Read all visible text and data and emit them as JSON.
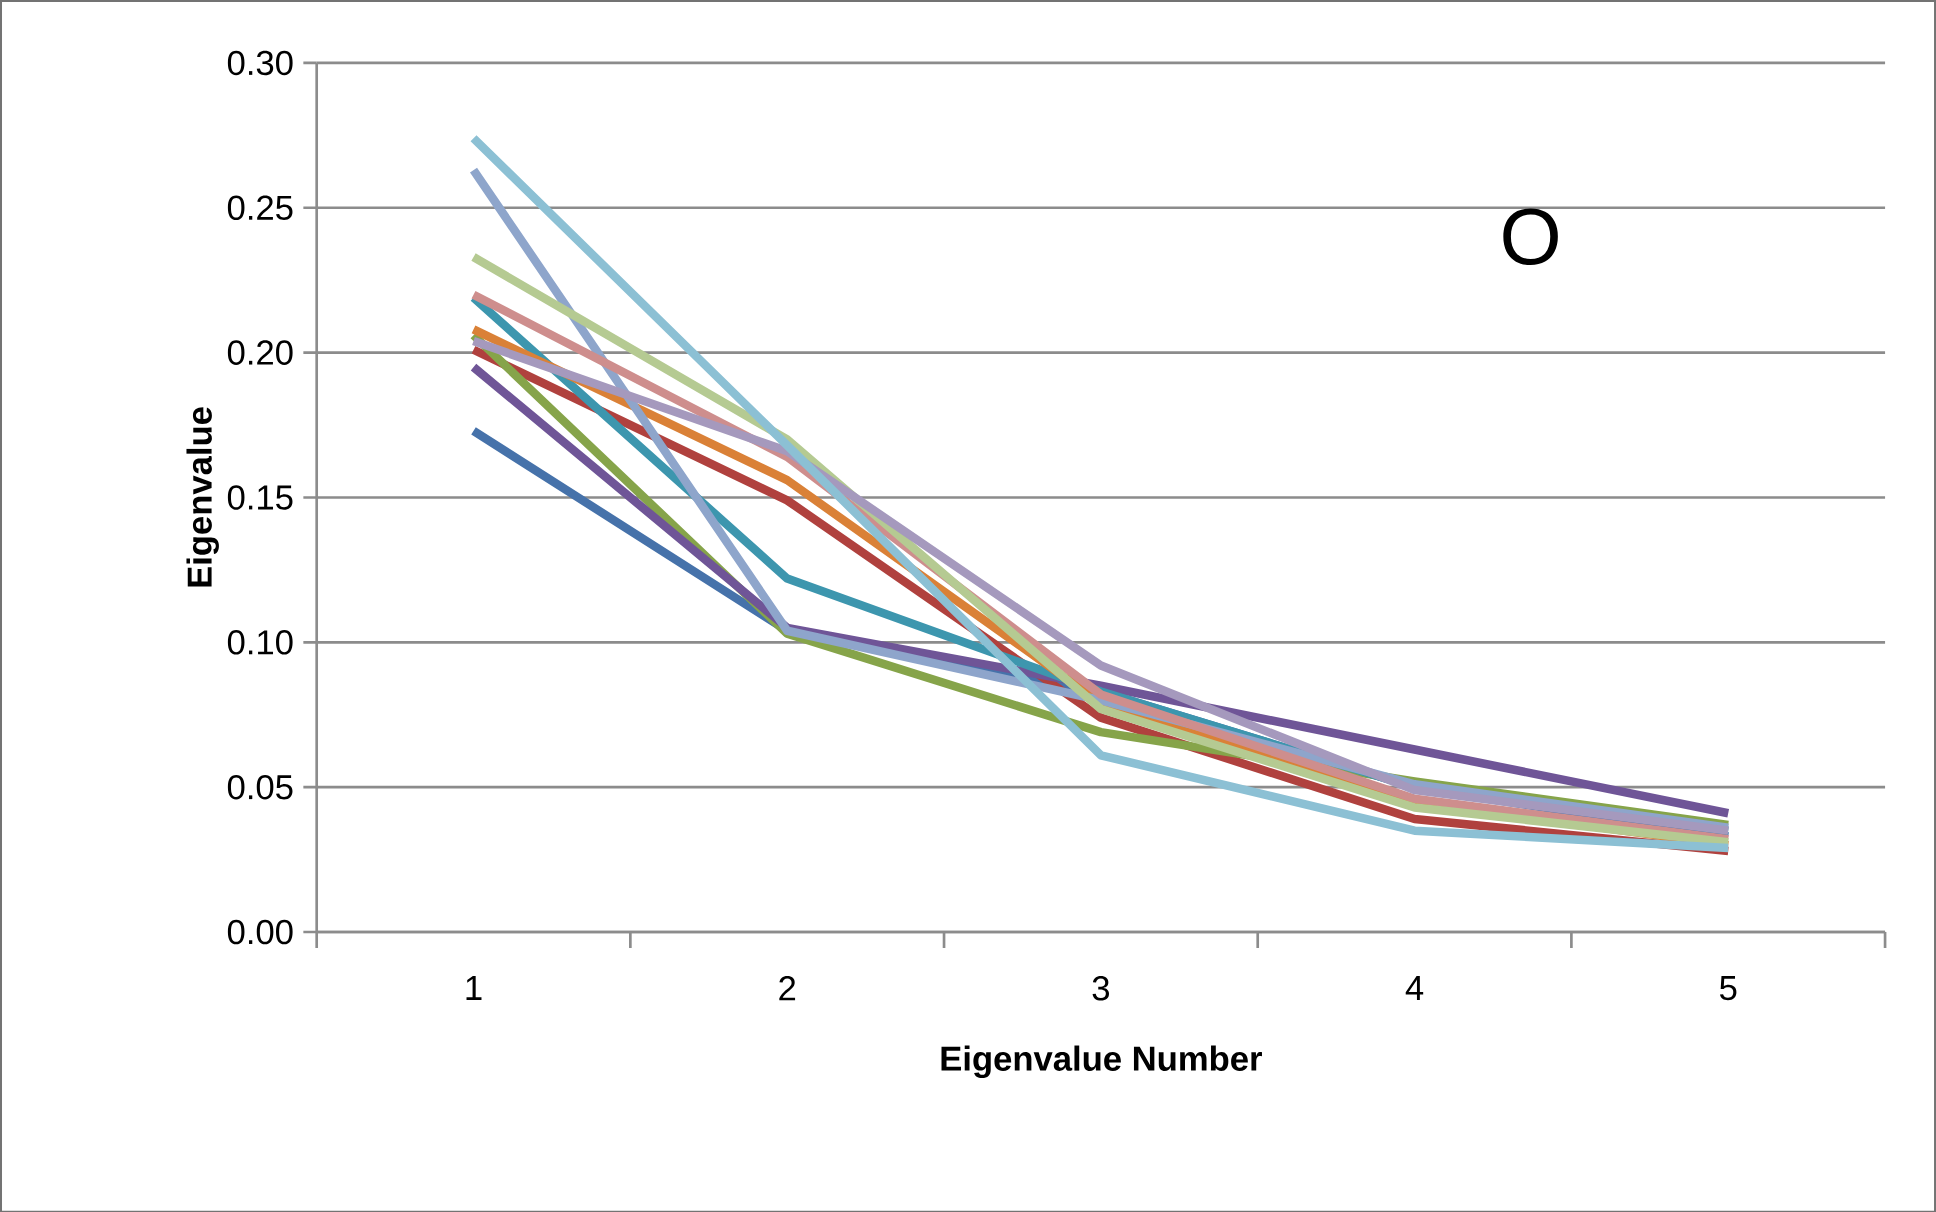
{
  "chart_data": {
    "type": "line",
    "xlabel": "Eigenvalue Number",
    "ylabel": "Eigenvalue",
    "categories": [
      "1",
      "2",
      "3",
      "4",
      "5"
    ],
    "series": [
      {
        "color": "#4672aa",
        "values": [
          0.173,
          0.104,
          0.083,
          0.05,
          0.033
        ]
      },
      {
        "color": "#b0413e",
        "values": [
          0.201,
          0.149,
          0.074,
          0.039,
          0.028
        ]
      },
      {
        "color": "#86a44a",
        "values": [
          0.206,
          0.103,
          0.069,
          0.052,
          0.037
        ]
      },
      {
        "color": "#6f5597",
        "values": [
          0.195,
          0.105,
          0.085,
          0.063,
          0.041
        ]
      },
      {
        "color": "#3d96ae",
        "values": [
          0.219,
          0.122,
          0.083,
          0.05,
          0.035
        ]
      },
      {
        "color": "#da8137",
        "values": [
          0.208,
          0.156,
          0.079,
          0.045,
          0.03
        ]
      },
      {
        "color": "#8ea5cb",
        "values": [
          0.263,
          0.104,
          0.08,
          0.051,
          0.036
        ]
      },
      {
        "color": "#ce8e8d",
        "values": [
          0.22,
          0.164,
          0.082,
          0.046,
          0.032
        ]
      },
      {
        "color": "#b5ca92",
        "values": [
          0.233,
          0.17,
          0.077,
          0.043,
          0.031
        ]
      },
      {
        "color": "#a599bd",
        "values": [
          0.204,
          0.166,
          0.092,
          0.049,
          0.035
        ]
      },
      {
        "color": "#8cc0d4",
        "values": [
          0.274,
          0.168,
          0.061,
          0.035,
          0.029
        ]
      }
    ],
    "ylim": [
      0,
      0.3
    ],
    "yticks": [
      {
        "value": 0,
        "label": "0.00"
      },
      {
        "value": 0.05,
        "label": "0.05"
      },
      {
        "value": 0.1,
        "label": "0.10"
      },
      {
        "value": 0.15,
        "label": "0.15"
      },
      {
        "value": 0.2,
        "label": "0.20"
      },
      {
        "value": 0.25,
        "label": "0.25"
      },
      {
        "value": 0.3,
        "label": "0.30"
      }
    ],
    "grid": "y",
    "marker": "none",
    "line_style": "solid",
    "annotations": [
      "O"
    ]
  }
}
